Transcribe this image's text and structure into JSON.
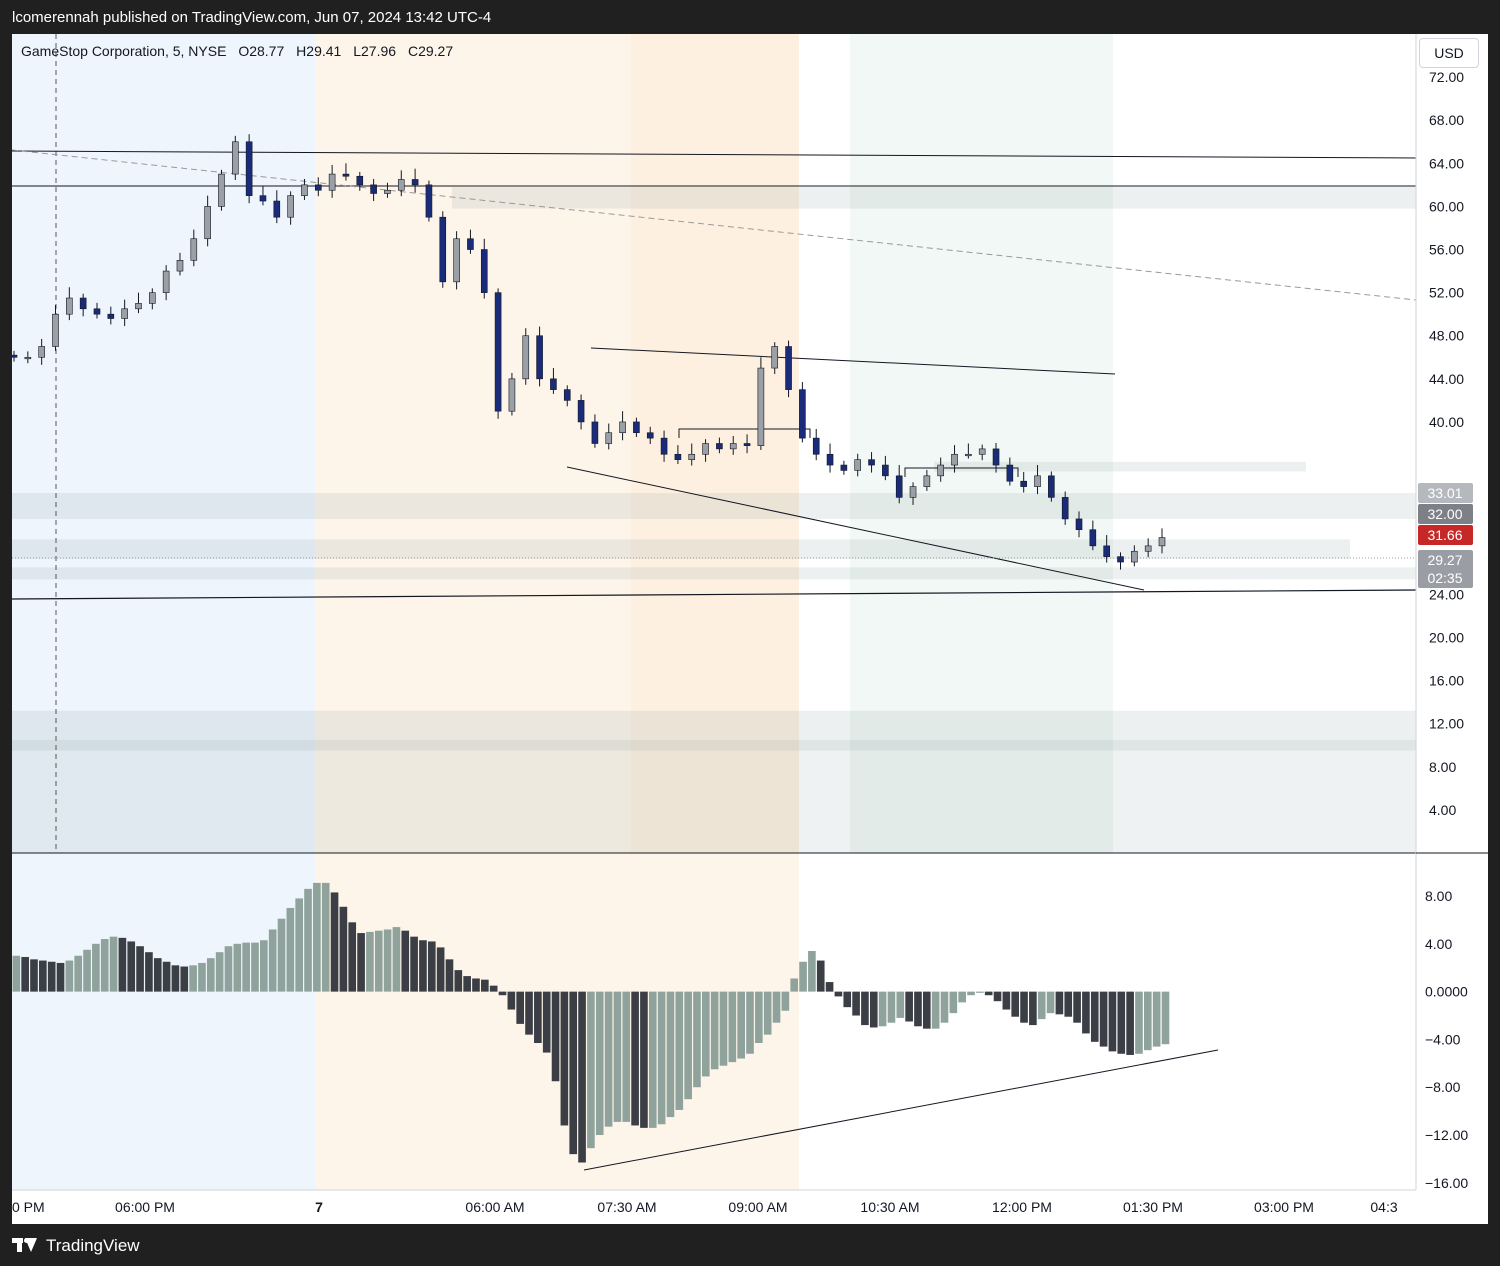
{
  "header": {
    "publisher_line": "lcomerennah published on TradingView.com, Jun 07, 2024 13:42 UTC-4"
  },
  "footer": {
    "brand": "TradingView"
  },
  "chart": {
    "symbol_line": "GameStop Corporation, 5, NYSE",
    "ohlc": [
      {
        "key": "O",
        "value": "28.77"
      },
      {
        "key": "H",
        "value": "29.41"
      },
      {
        "key": "L",
        "value": "27.96"
      },
      {
        "key": "C",
        "value": "29.27"
      }
    ],
    "currency_button": "USD"
  },
  "colors": {
    "up_candle": "#9aa0a6",
    "down_candle": "#1a2b7a",
    "hist_dark": "#3b3e45",
    "hist_light": "#8fa39c",
    "zone_blue": "#e8f1fb",
    "zone_orange": "#fdf0e0",
    "zone_green": "#eaf3ee",
    "badge_close": "#7d8086",
    "badge_red": "#c62828"
  },
  "chart_data": [
    {
      "type": "candlestick",
      "symbol": "GameStop Corporation",
      "interval": "5",
      "exchange": "NYSE",
      "currency": "USD",
      "y_ticks": [
        "72.00",
        "68.00",
        "64.00",
        "60.00",
        "56.00",
        "52.00",
        "48.00",
        "44.00",
        "40.00",
        "24.00",
        "20.00",
        "16.00",
        "12.00",
        "8.00",
        "4.00"
      ],
      "price_badges": [
        {
          "label": "33.01",
          "value": 33.01,
          "color": "#b5b8bd"
        },
        {
          "label": "32.00",
          "value": 32.0,
          "color": "#7d8086"
        },
        {
          "label": "31.66",
          "value": 31.66,
          "color": "#c62828"
        },
        {
          "label": "29.27",
          "value": 29.27,
          "color": "#9a9da3"
        },
        {
          "label": "02:35",
          "value": null,
          "color": "#9a9da3"
        }
      ],
      "x_ticks": [
        "0 PM",
        "06:00 PM",
        "7",
        "06:00 AM",
        "07:30 AM",
        "09:00 AM",
        "10:30 AM",
        "12:00 PM",
        "01:30 PM",
        "03:00 PM",
        "04:3"
      ],
      "ylim": [
        0,
        76
      ],
      "horizontal_levels": [
        68.0,
        64.4
      ],
      "zones": [
        [
          59.8,
          61.8
        ],
        [
          31.0,
          33.4
        ],
        [
          27.3,
          29.1
        ],
        [
          25.4,
          26.5
        ],
        [
          9.5,
          13.2
        ],
        [
          0,
          10.5
        ]
      ],
      "close_path": [
        46.0,
        46.0,
        47.0,
        50.0,
        51.5,
        50.5,
        50.0,
        49.6,
        50.5,
        51.0,
        52.0,
        54.0,
        55.0,
        57.0,
        60.0,
        63.0,
        66.0,
        61.0,
        60.5,
        59.0,
        61.0,
        62.0,
        61.5,
        63.0,
        62.8,
        62.0,
        61.2,
        61.5,
        62.5,
        62.0,
        59.0,
        53.0,
        57.0,
        56.0,
        52.0,
        41.0,
        44.0,
        48.0,
        44.0,
        43.0,
        42.0,
        40.0,
        38.0,
        39.0,
        40.0,
        39.0,
        38.5,
        37.0,
        36.5,
        37.0,
        38.0,
        37.5,
        38.0,
        37.8,
        45.0,
        47.0,
        43.0,
        38.5,
        37.0,
        36.0,
        35.5,
        36.5,
        36.0,
        35.0,
        33.0,
        34.0,
        35.0,
        36.0,
        37.0,
        37.0,
        37.5,
        36.0,
        34.5,
        34.0,
        35.0,
        33.0,
        31.0,
        30.0,
        28.5,
        27.5,
        27.0,
        28.0,
        28.5,
        29.27
      ],
      "candle_count": 84,
      "note_indicator": "momentum histogram",
      "histogram": {
        "y_ticks": [
          "8.00",
          "4.00",
          "0.0000",
          "−4.00",
          "−8.00",
          "−12.00",
          "−16.00"
        ],
        "ylim": [
          -16.6,
          11.6
        ],
        "values": [
          3.0,
          2.9,
          2.7,
          2.6,
          2.5,
          2.4,
          2.6,
          3.0,
          3.5,
          4.0,
          4.4,
          4.6,
          4.5,
          4.2,
          3.8,
          3.3,
          2.8,
          2.5,
          2.2,
          2.1,
          2.2,
          2.4,
          2.8,
          3.3,
          3.8,
          4.0,
          4.1,
          4.1,
          4.3,
          5.2,
          6.1,
          7.0,
          7.8,
          8.6,
          9.1,
          9.1,
          8.3,
          7.1,
          5.8,
          4.9,
          5.0,
          5.1,
          5.2,
          5.4,
          5.1,
          4.6,
          4.3,
          4.2,
          3.7,
          2.7,
          1.8,
          1.3,
          1.1,
          1.0,
          0.5,
          -0.3,
          -1.5,
          -2.7,
          -3.6,
          -4.3,
          -5.1,
          -7.5,
          -11.2,
          -13.6,
          -14.3,
          -13.1,
          -12.0,
          -11.3,
          -10.9,
          -10.9,
          -11.2,
          -11.4,
          -11.4,
          -11.1,
          -10.5,
          -9.9,
          -9.0,
          -8.0,
          -7.1,
          -6.5,
          -6.2,
          -5.9,
          -5.6,
          -5.2,
          -4.3,
          -3.6,
          -2.6,
          -1.6,
          1.1,
          2.5,
          3.4,
          2.6,
          0.8,
          -0.4,
          -1.3,
          -2.0,
          -2.8,
          -3.0,
          -2.9,
          -2.6,
          -2.2,
          -2.5,
          -2.9,
          -3.1,
          -3.1,
          -2.6,
          -1.8,
          -0.9,
          -0.3,
          -0.1,
          -0.3,
          -0.8,
          -1.5,
          -2.1,
          -2.6,
          -2.8,
          -2.3,
          -1.8,
          -1.9,
          -2.1,
          -2.6,
          -3.5,
          -4.2,
          -4.6,
          -5.0,
          -5.2,
          -5.3,
          -5.2,
          -4.9,
          -4.6,
          -4.4
        ]
      }
    }
  ]
}
